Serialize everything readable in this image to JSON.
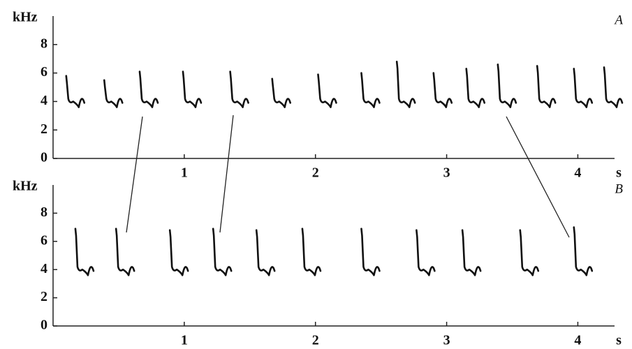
{
  "chart_data": [
    {
      "type": "spectrogram",
      "panel_label": "A",
      "y_label": "kHz",
      "x_label": "s",
      "xlim": [
        0,
        4.2
      ],
      "xticks": [
        1,
        2,
        3,
        4
      ],
      "ylim": [
        0,
        10
      ],
      "yticks": [
        0,
        2,
        4,
        6,
        8
      ],
      "x": [
        0.1,
        0.39,
        0.66,
        0.99,
        1.35,
        1.67,
        2.02,
        2.35,
        2.62,
        2.9,
        3.15,
        3.39,
        3.69,
        3.97,
        4.2
      ],
      "values": [
        5.8,
        5.5,
        6.1,
        6.1,
        6.1,
        5.6,
        5.9,
        6.0,
        6.8,
        6.0,
        6.3,
        6.6,
        6.5,
        6.3,
        6.4
      ],
      "color": "#555555"
    },
    {
      "type": "spectrogram",
      "panel_label": "B",
      "y_label": "kHz",
      "x_label": "s",
      "xlim": [
        0,
        4.2
      ],
      "xticks": [
        1,
        2,
        3,
        4
      ],
      "ylim": [
        0,
        10
      ],
      "yticks": [
        0,
        2,
        4,
        6,
        8
      ],
      "x": [
        0.17,
        0.48,
        0.89,
        1.22,
        1.55,
        1.9,
        2.35,
        2.77,
        3.12,
        3.56,
        3.97
      ],
      "values": [
        6.9,
        6.9,
        6.8,
        6.9,
        6.8,
        6.9,
        6.9,
        6.8,
        6.8,
        6.8,
        7.0
      ],
      "color": "#111111"
    }
  ]
}
